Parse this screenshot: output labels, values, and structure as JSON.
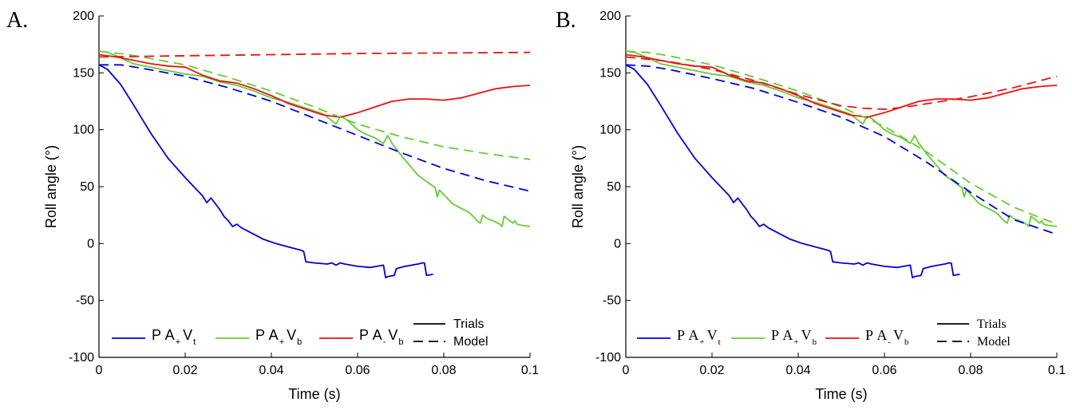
{
  "panels": [
    {
      "letter": "A.",
      "ylabel": "Roll angle (°)",
      "xlabel": "Time (s)"
    },
    {
      "letter": "B.",
      "ylabel": "Roll angle (°)",
      "xlabel": "Time (s)"
    }
  ],
  "legend": {
    "series": [
      {
        "base1": "P",
        "base2": "A",
        "sub1": "+",
        "base3": "V",
        "sub2": "t",
        "color": "#0000dd"
      },
      {
        "base1": "P",
        "base2": "A",
        "sub1": "+",
        "base3": "V",
        "sub2": "b",
        "color": "#66cc33"
      },
      {
        "base1": "P",
        "base2": "A",
        "sub1": "-",
        "base3": "V",
        "sub2": "b",
        "color": "#ee1111"
      }
    ],
    "styles": {
      "solid": "Trials",
      "dashed": "Model"
    }
  },
  "chart_data": [
    {
      "type": "line",
      "xlabel": "Time (s)",
      "ylabel": "Roll angle (°)",
      "xlim": [
        0,
        0.1
      ],
      "ylim": [
        -100,
        200
      ],
      "xticks": [
        0,
        0.02,
        0.04,
        0.06,
        0.08,
        0.1
      ],
      "yticks": [
        -100,
        -50,
        0,
        50,
        100,
        150,
        200
      ],
      "legend_position": "bottom",
      "series": [
        {
          "name": "PA+Vt",
          "style": "solid",
          "color": "#0000dd",
          "x": [
            0,
            0.002,
            0.005,
            0.008,
            0.012,
            0.016,
            0.02,
            0.024,
            0.025,
            0.026,
            0.027,
            0.028,
            0.029,
            0.03,
            0.031,
            0.032,
            0.033,
            0.035,
            0.038,
            0.041,
            0.044,
            0.047,
            0.0475,
            0.048,
            0.05,
            0.053,
            0.054,
            0.055,
            0.056,
            0.057,
            0.06,
            0.063,
            0.066,
            0.0665,
            0.067,
            0.0685,
            0.069,
            0.071,
            0.074,
            0.075,
            0.0755,
            0.076,
            0.0775
          ],
          "y": [
            157,
            153,
            140,
            122,
            97,
            75,
            58,
            42,
            36,
            40,
            35,
            30,
            24,
            20,
            15,
            17,
            14,
            10,
            4,
            0,
            -3,
            -6,
            -7,
            -16,
            -17,
            -18,
            -17,
            -19,
            -17,
            -18,
            -20,
            -21,
            -19,
            -30,
            -29,
            -28,
            -22,
            -20,
            -18,
            -17,
            -17,
            -28,
            -27
          ]
        },
        {
          "name": "PA+Vb",
          "style": "solid",
          "color": "#66cc33",
          "x": [
            0,
            0.002,
            0.004,
            0.008,
            0.012,
            0.016,
            0.02,
            0.024,
            0.028,
            0.032,
            0.036,
            0.04,
            0.044,
            0.048,
            0.052,
            0.055,
            0.056,
            0.057,
            0.058,
            0.06,
            0.062,
            0.064,
            0.066,
            0.067,
            0.068,
            0.07,
            0.074,
            0.078,
            0.0785,
            0.079,
            0.08,
            0.082,
            0.084,
            0.086,
            0.088,
            0.0885,
            0.089,
            0.09,
            0.092,
            0.093,
            0.0935,
            0.094,
            0.096,
            0.0965,
            0.097,
            0.098,
            0.1
          ],
          "y": [
            169,
            168,
            165,
            158,
            155,
            152,
            149,
            147,
            142,
            139,
            134,
            128,
            124,
            119,
            114,
            105,
            112,
            110,
            107,
            100,
            96,
            93,
            88,
            95,
            88,
            78,
            60,
            49,
            41,
            47,
            43,
            35,
            31,
            27,
            19,
            18,
            25,
            22,
            19,
            17,
            15,
            24,
            18,
            20,
            17,
            16,
            15
          ]
        },
        {
          "name": "PA-Vb",
          "style": "solid",
          "color": "#ee1111",
          "x": [
            0,
            0.004,
            0.008,
            0.012,
            0.016,
            0.02,
            0.024,
            0.028,
            0.032,
            0.036,
            0.04,
            0.044,
            0.048,
            0.052,
            0.056,
            0.06,
            0.064,
            0.068,
            0.072,
            0.076,
            0.08,
            0.084,
            0.088,
            0.092,
            0.096,
            0.1
          ],
          "y": [
            166,
            164,
            161,
            158,
            156,
            155,
            148,
            143,
            141,
            136,
            130,
            123,
            118,
            113,
            111,
            115,
            120,
            125,
            127,
            127,
            126,
            128,
            132,
            136,
            138,
            139
          ]
        },
        {
          "name": "PA+Vt model",
          "style": "dashed",
          "color": "#0000dd",
          "x": [
            0,
            0.005,
            0.01,
            0.02,
            0.03,
            0.04,
            0.05,
            0.06,
            0.07,
            0.08,
            0.09,
            0.1
          ],
          "y": [
            157,
            157,
            154,
            147,
            137,
            125,
            110,
            95,
            80,
            66,
            55,
            46
          ]
        },
        {
          "name": "PA+Vb model",
          "style": "dashed",
          "color": "#66cc33",
          "x": [
            0,
            0.005,
            0.01,
            0.02,
            0.03,
            0.04,
            0.05,
            0.06,
            0.07,
            0.08,
            0.09,
            0.1
          ],
          "y": [
            169,
            167,
            164,
            157,
            146,
            134,
            120,
            105,
            94,
            85,
            79,
            74
          ]
        },
        {
          "name": "PA-Vb model",
          "style": "dashed",
          "color": "#ee1111",
          "x": [
            0,
            0.02,
            0.04,
            0.06,
            0.08,
            0.1
          ],
          "y": [
            164,
            165,
            166,
            167,
            167.5,
            168
          ]
        }
      ]
    },
    {
      "type": "line",
      "xlabel": "Time (s)",
      "ylabel": "Roll angle (°)",
      "xlim": [
        0,
        0.1
      ],
      "ylim": [
        -100,
        200
      ],
      "xticks": [
        0,
        0.02,
        0.04,
        0.06,
        0.08,
        0.1
      ],
      "yticks": [
        -100,
        -50,
        0,
        50,
        100,
        150,
        200
      ],
      "legend_position": "bottom",
      "series": [
        {
          "name": "PA+Vt",
          "style": "solid",
          "color": "#0000dd",
          "x": [
            0,
            0.002,
            0.005,
            0.008,
            0.012,
            0.016,
            0.02,
            0.024,
            0.025,
            0.026,
            0.027,
            0.028,
            0.029,
            0.03,
            0.031,
            0.032,
            0.033,
            0.035,
            0.038,
            0.041,
            0.044,
            0.047,
            0.0475,
            0.048,
            0.05,
            0.053,
            0.054,
            0.055,
            0.056,
            0.057,
            0.06,
            0.063,
            0.066,
            0.0665,
            0.067,
            0.0685,
            0.069,
            0.071,
            0.074,
            0.075,
            0.0755,
            0.076,
            0.0775
          ],
          "y": [
            157,
            153,
            140,
            122,
            97,
            75,
            58,
            42,
            36,
            40,
            35,
            30,
            24,
            20,
            15,
            17,
            14,
            10,
            4,
            0,
            -3,
            -6,
            -7,
            -16,
            -17,
            -18,
            -17,
            -19,
            -17,
            -18,
            -20,
            -21,
            -19,
            -30,
            -29,
            -28,
            -22,
            -20,
            -18,
            -17,
            -17,
            -28,
            -27
          ]
        },
        {
          "name": "PA+Vb",
          "style": "solid",
          "color": "#66cc33",
          "x": [
            0,
            0.002,
            0.004,
            0.008,
            0.012,
            0.016,
            0.02,
            0.024,
            0.028,
            0.032,
            0.036,
            0.04,
            0.044,
            0.048,
            0.052,
            0.055,
            0.056,
            0.057,
            0.058,
            0.06,
            0.062,
            0.064,
            0.066,
            0.067,
            0.068,
            0.07,
            0.074,
            0.078,
            0.0785,
            0.079,
            0.08,
            0.082,
            0.084,
            0.086,
            0.088,
            0.0885,
            0.089,
            0.09,
            0.092,
            0.093,
            0.0935,
            0.094,
            0.096,
            0.0965,
            0.097,
            0.098,
            0.1
          ],
          "y": [
            169,
            168,
            165,
            158,
            155,
            152,
            149,
            147,
            142,
            139,
            134,
            128,
            124,
            119,
            114,
            105,
            112,
            110,
            107,
            100,
            96,
            93,
            88,
            95,
            88,
            78,
            60,
            49,
            41,
            47,
            43,
            35,
            31,
            27,
            19,
            18,
            25,
            22,
            19,
            17,
            15,
            24,
            18,
            20,
            17,
            16,
            15
          ]
        },
        {
          "name": "PA-Vb",
          "style": "solid",
          "color": "#ee1111",
          "x": [
            0,
            0.004,
            0.008,
            0.012,
            0.016,
            0.02,
            0.024,
            0.028,
            0.032,
            0.036,
            0.04,
            0.044,
            0.048,
            0.052,
            0.056,
            0.06,
            0.064,
            0.068,
            0.072,
            0.076,
            0.08,
            0.084,
            0.088,
            0.092,
            0.096,
            0.1
          ],
          "y": [
            166,
            164,
            161,
            158,
            156,
            155,
            148,
            143,
            141,
            136,
            130,
            123,
            118,
            113,
            111,
            115,
            120,
            125,
            127,
            127,
            126,
            128,
            132,
            136,
            138,
            139
          ]
        },
        {
          "name": "PA+Vt model",
          "style": "dashed",
          "color": "#0000dd",
          "x": [
            0,
            0.005,
            0.01,
            0.02,
            0.03,
            0.04,
            0.05,
            0.06,
            0.07,
            0.08,
            0.09,
            0.1
          ],
          "y": [
            157,
            156,
            153,
            145,
            136,
            124,
            111,
            94,
            71,
            45,
            21,
            8
          ]
        },
        {
          "name": "PA+Vb model",
          "style": "dashed",
          "color": "#66cc33",
          "x": [
            0,
            0.005,
            0.01,
            0.02,
            0.03,
            0.04,
            0.05,
            0.06,
            0.07,
            0.08,
            0.09,
            0.1
          ],
          "y": [
            169,
            168,
            165,
            157,
            146,
            134,
            120,
            103,
            80,
            53,
            32,
            17
          ]
        },
        {
          "name": "PA-Vb model",
          "style": "dashed",
          "color": "#ee1111",
          "x": [
            0,
            0.01,
            0.02,
            0.03,
            0.04,
            0.05,
            0.055,
            0.06,
            0.065,
            0.07,
            0.08,
            0.09,
            0.1
          ],
          "y": [
            164,
            160,
            153,
            143,
            131,
            121,
            119,
            118,
            120,
            123,
            129,
            137,
            147
          ]
        }
      ]
    }
  ]
}
